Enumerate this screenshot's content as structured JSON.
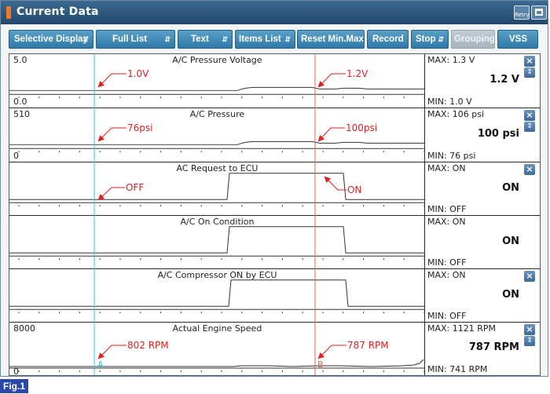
{
  "window": {
    "title": "Current Data",
    "retry_label": "Retry"
  },
  "toolbar": {
    "buttons": [
      {
        "label": "Selective Display",
        "arrow": "⬍"
      },
      {
        "label": "Full List",
        "arrow": "⬍"
      },
      {
        "label": "Text",
        "arrow": "⬍"
      },
      {
        "label": "Items List",
        "arrow": "⬍"
      },
      {
        "label": "Reset Min.Max"
      },
      {
        "label": "Record"
      },
      {
        "label": "Stop",
        "arrow": "⬍"
      },
      {
        "label": "Grouping",
        "disabled": true
      },
      {
        "label": "VSS"
      }
    ]
  },
  "panels": [
    {
      "title": "A/C Pressure Voltage",
      "ymax": "5.0",
      "ymin": "0.0",
      "max": "MAX:   1.3 V",
      "min": "MIN:   1.0 V",
      "current": "1.2 V",
      "ann_a": "1.0V",
      "ann_b": "1.2V"
    },
    {
      "title": "A/C Pressure",
      "ymax": "510",
      "ymin": "0",
      "max": "MAX:   106 psi",
      "min": "MIN:   76 psi",
      "current": "100 psi",
      "ann_a": "76psi",
      "ann_b": "100psi"
    },
    {
      "title": "AC Request to ECU",
      "ymax": "",
      "ymin": "",
      "max": "MAX: ON",
      "min": "MIN: OFF",
      "current": "ON",
      "ann_a": "OFF",
      "ann_b": "ON"
    },
    {
      "title": "A/C On Condition",
      "ymax": "",
      "ymin": "",
      "max": "MAX: ON",
      "min": "MIN: OFF",
      "current": "ON"
    },
    {
      "title": "A/C Compressor ON by ECU",
      "ymax": "",
      "ymin": "",
      "max": "MAX: ON",
      "min": "MIN: OFF",
      "current": "ON"
    },
    {
      "title": "Actual Engine Speed",
      "ymax": "8000",
      "ymin": "0",
      "max": "MAX:   1121 RPM",
      "min": "MIN:   741 RPM",
      "current": "787 RPM",
      "ann_a": "802 RPM",
      "ann_b": "787 RPM"
    }
  ],
  "cursors": {
    "a_label": "A",
    "b_label": "B",
    "a_color": "#39c6d8",
    "b_color": "#e8664a"
  },
  "annotation_color": "#e41e1e",
  "figure_label": "Fig.1"
}
